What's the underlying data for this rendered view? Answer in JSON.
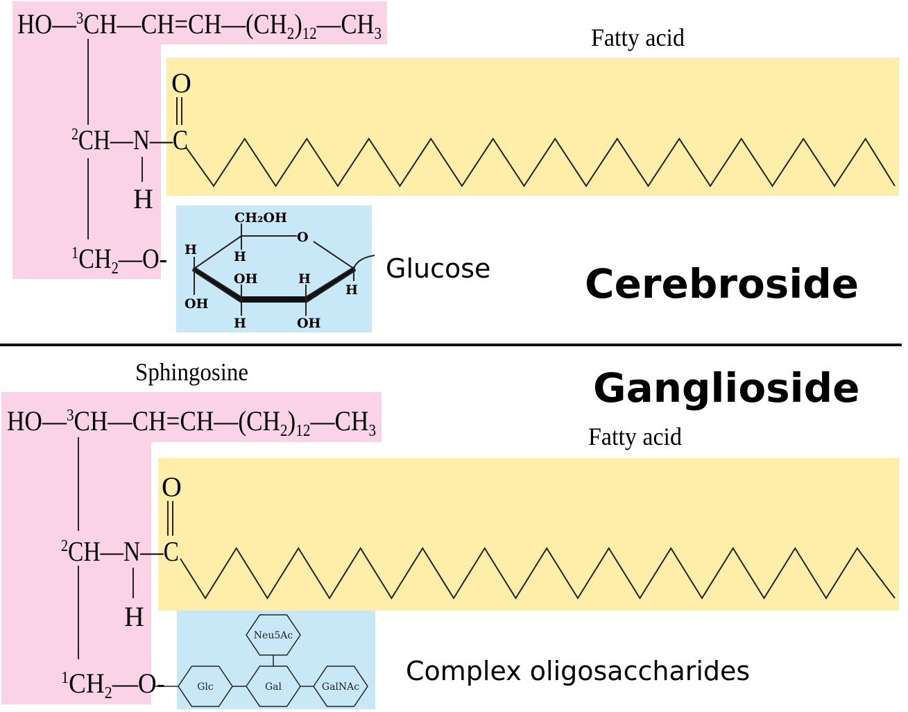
{
  "colors": {
    "sphingosine": "#fad4e6",
    "fatty_acid": "#ffeeaa",
    "sugar": "#c8e8f8",
    "line": "#222222"
  },
  "top": {
    "formula_main": [
      [
        "HO—",
        ""
      ],
      [
        "3",
        "sup"
      ],
      [
        "CH—CH=CH—(CH",
        ""
      ],
      [
        "2",
        "sub"
      ],
      [
        ")",
        ""
      ],
      [
        "12",
        "sub"
      ],
      [
        "—CH",
        ""
      ],
      [
        "3",
        "sub"
      ]
    ],
    "c2_label": [
      [
        "2",
        "sup"
      ],
      [
        "CH—N—C",
        ""
      ]
    ],
    "c1_label": [
      [
        "1",
        "sup"
      ],
      [
        "CH",
        ""
      ],
      [
        "2",
        "sub"
      ],
      [
        "—O-",
        ""
      ]
    ],
    "oxygen": "O",
    "hydrogen": "H",
    "fatty_acid_label": "Fatty acid",
    "sugar_label": "Glucose",
    "title": "Cerebroside",
    "glucose": {
      "ch2oh": "CH₂OH",
      "o": "O",
      "h": "H",
      "oh": "OH"
    }
  },
  "bottom": {
    "sphingosine_label": "Sphingosine",
    "formula_main": [
      [
        "HO—",
        ""
      ],
      [
        "3",
        "sup"
      ],
      [
        "CH—CH=CH—(CH",
        ""
      ],
      [
        "2",
        "sub"
      ],
      [
        ")",
        ""
      ],
      [
        "12",
        "sub"
      ],
      [
        "—CH",
        ""
      ],
      [
        "3",
        "sub"
      ]
    ],
    "c2_label": [
      [
        "2",
        "sup"
      ],
      [
        "CH—N—C",
        ""
      ]
    ],
    "c1_label": [
      [
        "1",
        "sup"
      ],
      [
        "CH",
        ""
      ],
      [
        "2",
        "sub"
      ],
      [
        "—O-",
        ""
      ]
    ],
    "oxygen": "O",
    "hydrogen": "H",
    "fatty_acid_label": "Fatty acid",
    "sugar_label": "Complex oligosaccharides",
    "title": "Ganglioside",
    "sugars": [
      "Glc",
      "Gal",
      "GalNAc",
      "Neu5Ac"
    ]
  }
}
